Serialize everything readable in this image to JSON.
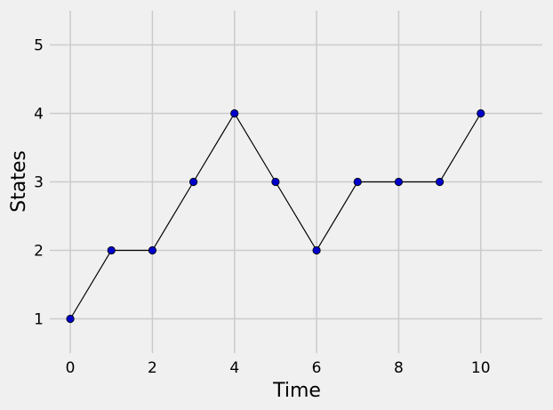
{
  "chart_data": {
    "type": "line",
    "title": "",
    "xlabel": "Time",
    "ylabel": "States",
    "xlim": [
      -0.5,
      11.5
    ],
    "ylim": [
      0.5,
      5.5
    ],
    "x_ticks": [
      0,
      2,
      4,
      6,
      8,
      10
    ],
    "y_ticks": [
      1,
      2,
      3,
      4,
      5
    ],
    "grid": true,
    "series": [
      {
        "x": [
          0,
          1,
          2,
          3,
          4,
          5,
          6,
          7,
          8,
          9,
          10
        ],
        "y": [
          1,
          2,
          2,
          3,
          4,
          3,
          2,
          3,
          3,
          3,
          4
        ],
        "line_color": "#000000",
        "marker_color": "#0000cc",
        "marker": "circle"
      }
    ]
  },
  "colors": {
    "background": "#f0f0f0",
    "grid": "#cbcbcb"
  }
}
